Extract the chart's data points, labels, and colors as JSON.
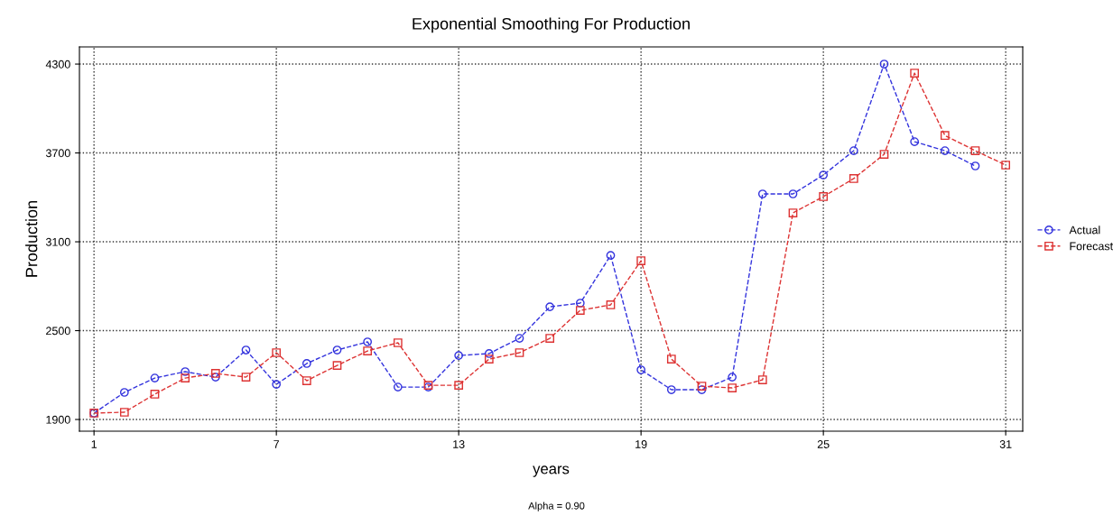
{
  "chart_data": {
    "type": "line",
    "title": "Exponential Smoothing For Production",
    "xlabel": "years",
    "ylabel": "Production",
    "annotations": [
      "Alpha = 0.90"
    ],
    "x": [
      1,
      2,
      3,
      4,
      5,
      6,
      7,
      8,
      9,
      10,
      11,
      12,
      13,
      14,
      15,
      16,
      17,
      18,
      19,
      20,
      21,
      22,
      23,
      24,
      25,
      26,
      27,
      28,
      29,
      30,
      31
    ],
    "series": [
      {
        "name": "Actual",
        "color": "#3333dd",
        "marker": "circle",
        "values": [
          1943,
          2083,
          2180,
          2223,
          2186,
          2369,
          2137,
          2278,
          2369,
          2424,
          2119,
          2119,
          2332,
          2345,
          2448,
          2661,
          2686,
          3008,
          2235,
          2101,
          2101,
          2186,
          3423,
          3423,
          3551,
          3715,
          4300,
          3776,
          3715,
          3612,
          null
        ]
      },
      {
        "name": "Forecast",
        "color": "#dd3333",
        "marker": "square",
        "values": [
          1943,
          1949,
          2071,
          2180,
          2211,
          2186,
          2351,
          2162,
          2265,
          2363,
          2418,
          2131,
          2131,
          2308,
          2351,
          2448,
          2637,
          2674,
          2972,
          2308,
          2125,
          2113,
          2168,
          3295,
          3405,
          3527,
          3691,
          4239,
          3818,
          3715,
          3618
        ]
      }
    ],
    "xlim": [
      0.52,
      31.56
    ],
    "xticks": [
      1,
      7,
      13,
      19,
      25,
      31
    ],
    "ylim": [
      1821,
      4416
    ],
    "yticks": [
      1900,
      2500,
      3100,
      3700,
      4300
    ],
    "grid": true,
    "legend": "right",
    "line_style": "dashed"
  }
}
